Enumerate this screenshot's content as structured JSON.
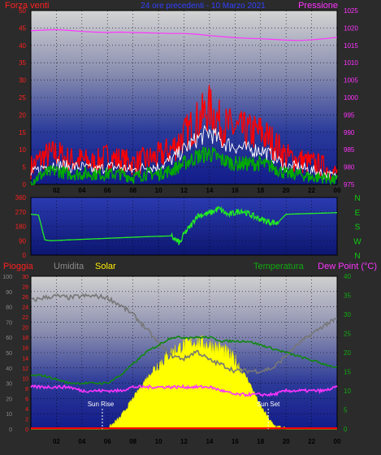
{
  "header": {
    "title": "24 ore precedenti - 10 Marzo 2021",
    "left_label": "Forza venti",
    "right_label": "Pressione"
  },
  "labels": {
    "pioggia": "Pioggia",
    "umidita": "Umidita",
    "solar": "Solar",
    "temperatura": "Temperatura",
    "dew_point": "Dew Point (°C)",
    "sun_rise": "Sun Rise",
    "sun_set": "Sun Set"
  },
  "colors": {
    "wind": "#ff0000",
    "gust": "#ffffff",
    "wind_avg": "#00aa00",
    "pressure": "#ff33ff",
    "direction": "#22ee22",
    "humidity": "#777777",
    "temperature": "#118811",
    "dew_point": "#ff33ff",
    "solar": "#ffff00",
    "rain": "#ff0000"
  },
  "chart_data": [
    {
      "type": "line",
      "panel": "wind-pressure",
      "x_ticks": [
        "02",
        "04",
        "06",
        "08",
        "10",
        "12",
        "14",
        "16",
        "18",
        "20",
        "22",
        "00"
      ],
      "y_left_ticks": [
        "0",
        "5",
        "10",
        "15",
        "20",
        "25",
        "30",
        "35",
        "40",
        "45",
        "50"
      ],
      "y_right_ticks": [
        "975",
        "980",
        "985",
        "990",
        "995",
        "1000",
        "1005",
        "1010",
        "1015",
        "1020",
        "1025"
      ],
      "ylim_left": [
        0,
        50
      ],
      "ylim_right": [
        975,
        1025
      ],
      "hours": [
        0,
        1,
        2,
        3,
        4,
        5,
        6,
        7,
        8,
        9,
        10,
        11,
        12,
        13,
        14,
        15,
        16,
        17,
        18,
        19,
        20,
        21,
        22,
        23,
        24
      ],
      "series": [
        {
          "key": "wind",
          "values": [
            5,
            8,
            9,
            7,
            7,
            6,
            8,
            7,
            6,
            7,
            8,
            10,
            14,
            18,
            22,
            17,
            16,
            15,
            15,
            12,
            8,
            7,
            6,
            5,
            3
          ]
        },
        {
          "key": "gust",
          "values": [
            3,
            5,
            6,
            5,
            5,
            4,
            5,
            5,
            4,
            5,
            5,
            7,
            10,
            13,
            15,
            12,
            11,
            10,
            10,
            8,
            5,
            5,
            4,
            3,
            2
          ]
        },
        {
          "key": "wind_avg",
          "values": [
            1,
            3,
            4,
            3,
            3,
            3,
            3,
            3,
            2,
            3,
            3,
            4,
            6,
            8,
            9,
            7,
            6,
            6,
            6,
            5,
            3,
            3,
            2,
            2,
            1
          ]
        },
        {
          "key": "pressure",
          "values": [
            1019.2,
            1019.4,
            1019.5,
            1019.3,
            1019.0,
            1018.8,
            1018.7,
            1018.8,
            1018.7,
            1018.6,
            1018.5,
            1018.4,
            1018.4,
            1018.2,
            1017.8,
            1017.5,
            1017.2,
            1017.0,
            1016.9,
            1016.7,
            1016.5,
            1016.4,
            1016.6,
            1016.9,
            1017.3
          ]
        }
      ]
    },
    {
      "type": "line",
      "panel": "wind-direction",
      "y_left_ticks": [
        "0",
        "90",
        "180",
        "270",
        "360"
      ],
      "y_right_ticks": [
        "N",
        "W",
        "S",
        "E",
        "N"
      ],
      "ylim": [
        0,
        360
      ],
      "series": [
        {
          "key": "direction",
          "points": [
            [
              0,
              255
            ],
            [
              0.6,
              250
            ],
            [
              1.1,
              95
            ],
            [
              1.6,
              90
            ],
            [
              3,
              95
            ],
            [
              6,
              105
            ],
            [
              9,
              115
            ],
            [
              11,
              120
            ],
            [
              11.4,
              90
            ],
            [
              11.7,
              75
            ],
            [
              12,
              130
            ],
            [
              12.6,
              190
            ],
            [
              13,
              245
            ],
            [
              14,
              260
            ],
            [
              14.7,
              290
            ],
            [
              15.5,
              250
            ],
            [
              16.5,
              280
            ],
            [
              17.5,
              240
            ],
            [
              18.5,
              210
            ],
            [
              19.3,
              200
            ],
            [
              20,
              255
            ],
            [
              22,
              260
            ],
            [
              24,
              265
            ]
          ]
        }
      ]
    },
    {
      "type": "line",
      "panel": "solar-temp",
      "x_ticks": [
        "02",
        "04",
        "06",
        "08",
        "10",
        "12",
        "14",
        "16",
        "18",
        "20",
        "22",
        "00"
      ],
      "y_humidity_ticks": [
        "0",
        "10",
        "20",
        "30",
        "40",
        "50",
        "60",
        "70",
        "80",
        "90",
        "100"
      ],
      "y_rain_ticks": [
        "0",
        "2",
        "4",
        "6",
        "8",
        "10",
        "12",
        "14",
        "16",
        "18",
        "20",
        "22",
        "24",
        "26",
        "28",
        "30"
      ],
      "y_right_ticks": [
        "0",
        "5",
        "10",
        "15",
        "20",
        "25",
        "30",
        "35",
        "40"
      ],
      "ylim_humidity": [
        0,
        100
      ],
      "ylim_rain": [
        0,
        30
      ],
      "ylim_right": [
        0,
        40
      ],
      "sun_rise_hour": 5.6,
      "sun_set_hour": 18.6,
      "hours": [
        0,
        1,
        2,
        3,
        4,
        5,
        6,
        7,
        8,
        9,
        10,
        11,
        12,
        13,
        14,
        15,
        16,
        17,
        18,
        19,
        20,
        21,
        22,
        23,
        24
      ],
      "series": [
        {
          "key": "humidity",
          "values": [
            84,
            86,
            87,
            86,
            87,
            87,
            86,
            81,
            75,
            66,
            56,
            48,
            46,
            51,
            45,
            42,
            38,
            38,
            38,
            40,
            48,
            56,
            62,
            68,
            72
          ]
        },
        {
          "key": "temperature",
          "values": [
            14,
            14,
            13,
            12,
            12,
            12,
            12,
            14,
            17,
            20,
            22,
            24,
            24,
            24,
            24,
            23,
            23,
            23,
            22,
            21,
            20,
            19,
            18,
            17,
            16
          ]
        },
        {
          "key": "dew_point",
          "values": [
            11,
            11,
            11,
            11,
            10,
            10,
            10,
            10,
            11,
            11,
            11,
            11,
            11,
            11,
            11,
            10,
            9,
            9,
            9,
            9,
            10,
            10,
            10,
            10,
            11
          ]
        },
        {
          "key": "solar",
          "values": [
            0,
            0,
            0,
            0,
            0,
            0,
            0,
            3,
            8,
            13,
            17,
            20,
            22,
            23,
            22,
            21,
            18,
            13,
            6,
            1,
            0,
            0,
            0,
            0,
            0
          ]
        },
        {
          "key": "rain",
          "values": [
            0,
            0,
            0,
            0,
            0,
            0,
            0,
            0,
            0,
            0,
            0,
            0,
            0,
            0,
            0,
            0,
            0,
            0,
            0,
            0,
            0,
            0,
            0,
            0,
            0
          ]
        }
      ]
    }
  ]
}
